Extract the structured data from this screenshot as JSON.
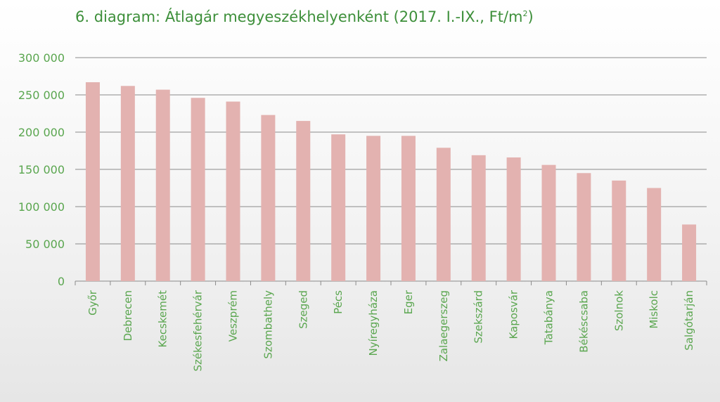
{
  "chart_data": {
    "type": "bar",
    "title": "6. diagram: Átlagár megyeszékhelyenként (2017. I.-IX., Ft/m",
    "title_sup": "2",
    "title_suffix": ")",
    "xlabel": "",
    "ylabel": "",
    "ylim": [
      0,
      300000
    ],
    "yticks": [
      0,
      50000,
      100000,
      150000,
      200000,
      250000,
      300000
    ],
    "ytick_labels": [
      "0",
      "50 000",
      "100 000",
      "150 000",
      "200 000",
      "250 000",
      "300 000"
    ],
    "categories": [
      "Győr",
      "Debrecen",
      "Kecskemét",
      "Székesfehérvár",
      "Veszprém",
      "Szombathely",
      "Szeged",
      "Pécs",
      "Nyíregyháza",
      "Eger",
      "Zalaegerszeg",
      "Szekszárd",
      "Kaposvár",
      "Tatabánya",
      "Békéscsaba",
      "Szolnok",
      "Miskolc",
      "Salgótarján"
    ],
    "values": [
      267000,
      262000,
      257000,
      246000,
      241000,
      223000,
      215000,
      197000,
      195000,
      195000,
      179000,
      169000,
      166000,
      156000,
      145000,
      135000,
      125000,
      76000
    ],
    "grid": true,
    "legend": "none",
    "colors": {
      "bar": "#e3b2b0",
      "grid": "#8a8a8a",
      "text": "#5aa64f",
      "title": "#3d8f3a"
    }
  }
}
